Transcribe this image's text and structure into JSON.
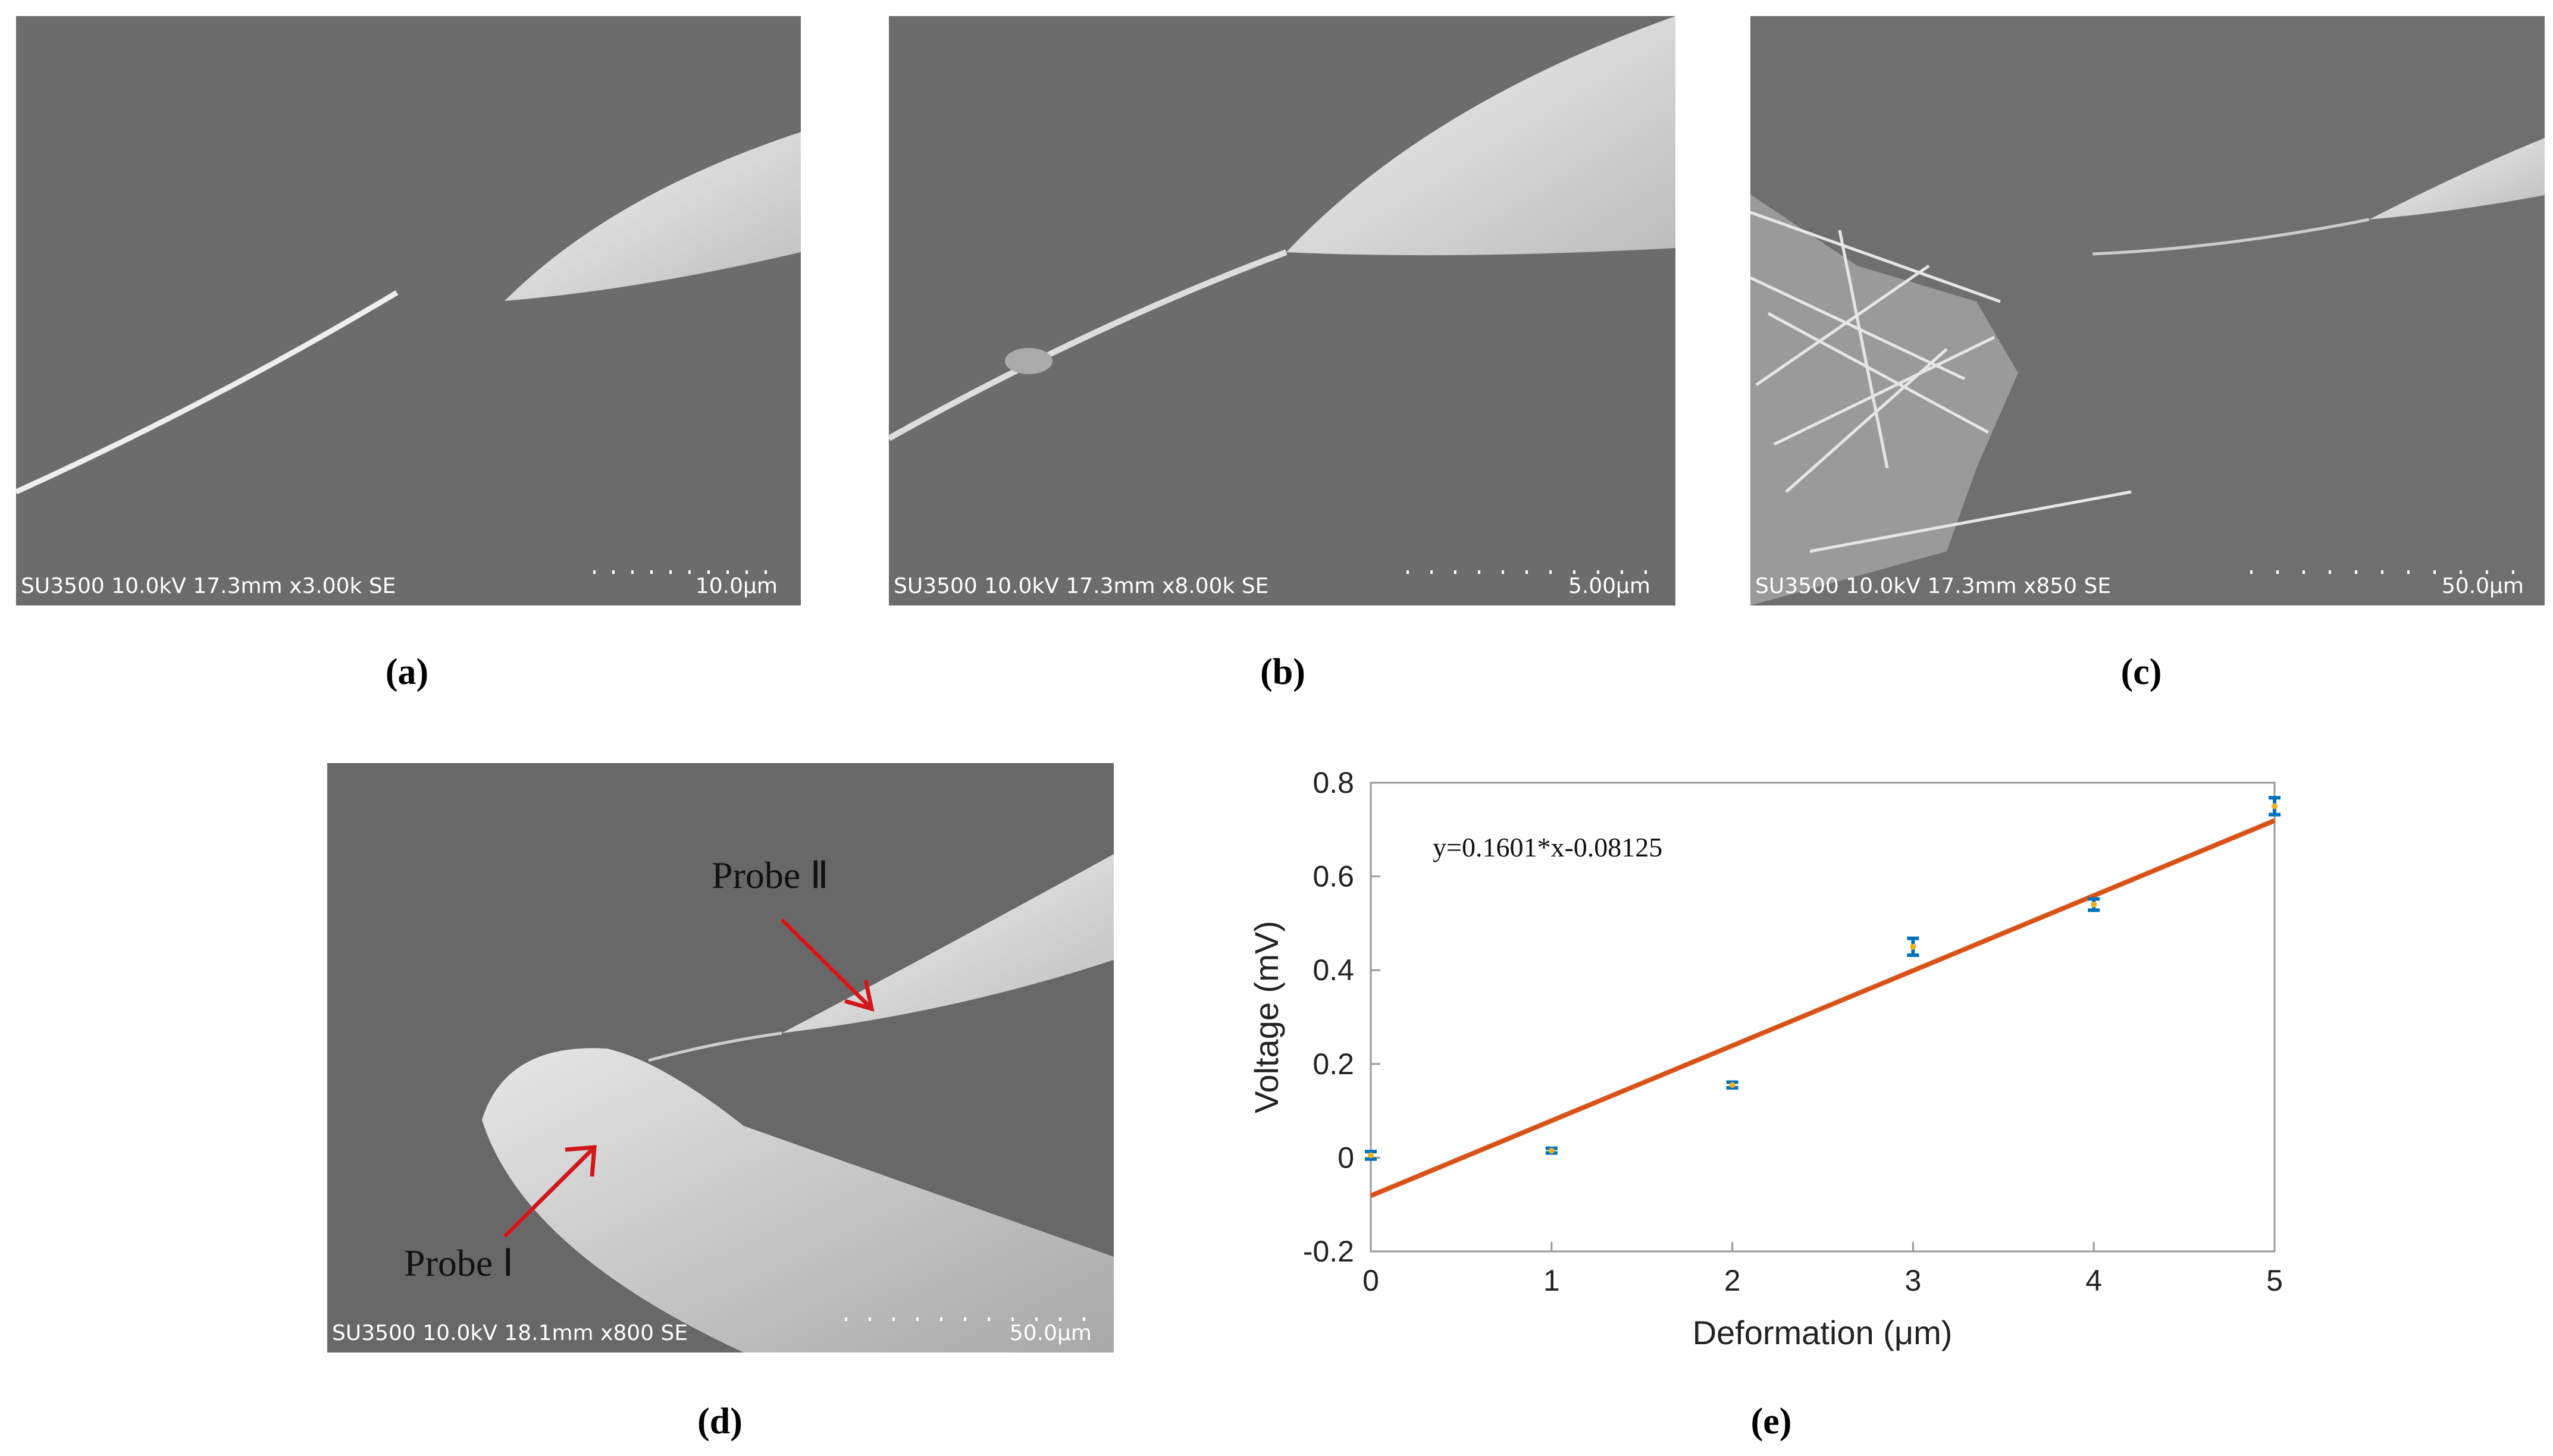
{
  "panels": [
    {
      "label": "(a)",
      "info": "SU3500 10.0kV 17.3mm x3.00k SE",
      "scale": "10.0μm"
    },
    {
      "label": "(b)",
      "info": "SU3500 10.0kV 17.3mm x8.00k SE",
      "scale": "5.00μm"
    },
    {
      "label": "(c)",
      "info": "SU3500 10.0kV 17.3mm x850 SE",
      "scale": "50.0μm"
    },
    {
      "label": "(d)",
      "info": "SU3500 10.0kV 18.1mm x800 SE",
      "scale": "50.0μm",
      "annotations": [
        "Probe Ⅱ",
        "Probe Ⅰ"
      ]
    }
  ],
  "chart_label": "(e)",
  "chart_data": {
    "type": "scatter",
    "x_label": "Deformation (μm)",
    "y_label": "Voltage (mV)",
    "annotation": "y=0.1601*x-0.08125",
    "x": [
      0,
      1,
      2,
      3,
      4,
      5
    ],
    "values": [
      0.005,
      0.015,
      0.155,
      0.45,
      0.54,
      0.75
    ],
    "errors": [
      0.008,
      0.005,
      0.006,
      0.018,
      0.012,
      0.018
    ],
    "color": "#0072bd",
    "marker_color": "#edb120",
    "fit": {
      "x": [
        0,
        5
      ],
      "values": [
        -0.08125,
        0.71925
      ],
      "color": "#d95319"
    },
    "xlim": [
      0,
      5
    ],
    "ylim": [
      -0.2,
      0.8
    ],
    "xticks": [
      0,
      1,
      2,
      3,
      4,
      5
    ],
    "yticks": [
      -0.2,
      0,
      0.2,
      0.4,
      0.6,
      0.8
    ]
  }
}
